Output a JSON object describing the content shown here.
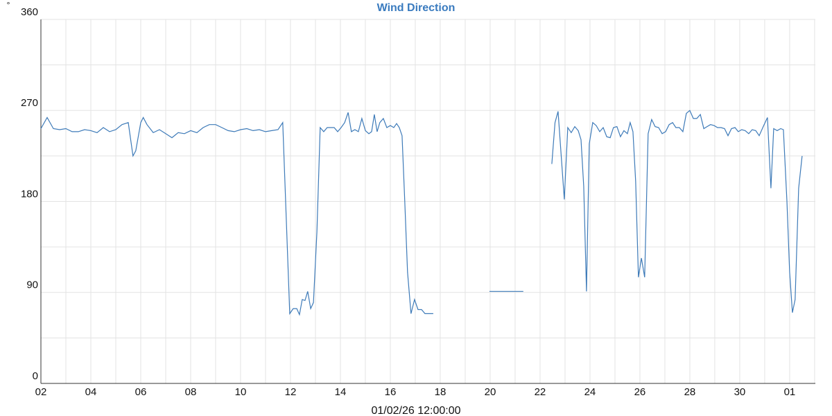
{
  "chart_data": {
    "type": "line",
    "title": "Wind Direction",
    "y_unit_label": "°",
    "x_label": "01/02/26 12:00:00",
    "xlim": [
      0,
      31.03
    ],
    "ylim": [
      0,
      360
    ],
    "xticks": [
      {
        "value": 0,
        "label": "02"
      },
      {
        "value": 2,
        "label": "04"
      },
      {
        "value": 4,
        "label": "06"
      },
      {
        "value": 6,
        "label": "08"
      },
      {
        "value": 8,
        "label": "10"
      },
      {
        "value": 10,
        "label": "12"
      },
      {
        "value": 12,
        "label": "14"
      },
      {
        "value": 14,
        "label": "16"
      },
      {
        "value": 16,
        "label": "18"
      },
      {
        "value": 18,
        "label": "20"
      },
      {
        "value": 20,
        "label": "22"
      },
      {
        "value": 22,
        "label": "24"
      },
      {
        "value": 24,
        "label": "26"
      },
      {
        "value": 26,
        "label": "28"
      },
      {
        "value": 28,
        "label": "30"
      },
      {
        "value": 30,
        "label": "01"
      }
    ],
    "x_minor_ticks": [
      1,
      3,
      5,
      7,
      9,
      11,
      13,
      15,
      17,
      19,
      21,
      23,
      25,
      27,
      29,
      31
    ],
    "yticks": [
      0,
      90,
      180,
      270,
      360
    ],
    "y_minor_ticks": [
      45,
      135,
      225,
      315
    ],
    "grid": true,
    "series": [
      {
        "name": "Wind Direction",
        "color": "#3d7ab8",
        "x": [
          0,
          0.25,
          0.5,
          0.75,
          1.0,
          1.25,
          1.5,
          1.75,
          2.0,
          2.25,
          2.5,
          2.75,
          3.0,
          3.25,
          3.5,
          3.69,
          3.8,
          4.0,
          4.1,
          4.25,
          4.5,
          4.75,
          5.0,
          5.25,
          5.5,
          5.75,
          6.0,
          6.25,
          6.5,
          6.75,
          7.0,
          7.25,
          7.5,
          7.75,
          8.0,
          8.25,
          8.5,
          8.75,
          9.0,
          9.25,
          9.5,
          9.69,
          9.97,
          10.11,
          10.25,
          10.36,
          10.47,
          10.58,
          10.69,
          10.81,
          10.92,
          11.06,
          11.19,
          11.33,
          11.47,
          11.61,
          11.75,
          11.89,
          12.03,
          12.17,
          12.31,
          12.44,
          12.58,
          12.72,
          12.86,
          13.0,
          13.14,
          13.25,
          13.36,
          13.47,
          13.58,
          13.72,
          13.86,
          14.0,
          14.14,
          14.25,
          14.36,
          14.47,
          14.58,
          14.69,
          14.83,
          14.97,
          15.11,
          15.25,
          15.39,
          15.72,
          16.8,
          17.97,
          19.33,
          20.0,
          20.47,
          20.6,
          20.72,
          20.97,
          21.11,
          21.25,
          21.39,
          21.53,
          21.64,
          21.75,
          21.86,
          21.97,
          22.11,
          22.25,
          22.39,
          22.53,
          22.67,
          22.81,
          22.94,
          23.08,
          23.22,
          23.36,
          23.5,
          23.61,
          23.72,
          23.83,
          23.94,
          24.06,
          24.19,
          24.33,
          24.47,
          24.61,
          24.75,
          24.89,
          25.03,
          25.17,
          25.31,
          25.44,
          25.58,
          25.72,
          25.86,
          26.0,
          26.14,
          26.28,
          26.42,
          26.56,
          26.69,
          26.83,
          26.97,
          27.11,
          27.25,
          27.39,
          27.53,
          27.67,
          27.81,
          27.94,
          28.08,
          28.22,
          28.36,
          28.5,
          28.64,
          28.78,
          28.94,
          29.11,
          29.25,
          29.36,
          29.5,
          29.64,
          29.75,
          29.89,
          30.0,
          30.11,
          30.22,
          30.36,
          30.5
        ],
        "values": [
          252,
          263,
          252,
          251,
          252,
          249,
          249,
          251,
          250,
          248,
          253,
          249,
          251,
          256,
          258,
          225,
          230,
          258,
          263,
          256,
          248,
          251,
          247,
          243,
          248,
          247,
          250,
          248,
          253,
          256,
          256,
          253,
          250,
          249,
          251,
          252,
          250,
          251,
          249,
          250,
          251,
          258,
          69,
          74,
          74,
          68,
          83,
          82,
          91,
          74,
          80,
          150,
          253,
          249,
          253,
          253,
          253,
          249,
          253,
          258,
          268,
          249,
          251,
          249,
          262,
          250,
          247,
          249,
          266,
          249,
          258,
          262,
          253,
          255,
          253,
          257,
          253,
          245,
          180,
          110,
          69,
          83,
          73,
          73,
          69,
          69,
          null,
          91,
          91,
          null,
          217,
          258,
          269,
          182,
          253,
          248,
          254,
          250,
          241,
          195,
          91,
          237,
          258,
          255,
          249,
          253,
          244,
          243,
          253,
          254,
          244,
          250,
          247,
          258,
          249,
          200,
          105,
          124,
          105,
          247,
          261,
          254,
          253,
          247,
          249,
          256,
          258,
          253,
          253,
          249,
          267,
          270,
          262,
          262,
          266,
          252,
          254,
          256,
          255,
          253,
          253,
          252,
          245,
          252,
          253,
          249,
          251,
          250,
          247,
          251,
          250,
          245,
          254,
          263,
          193,
          252,
          250,
          252,
          251,
          180,
          110,
          70,
          83,
          193,
          225
        ]
      }
    ]
  }
}
